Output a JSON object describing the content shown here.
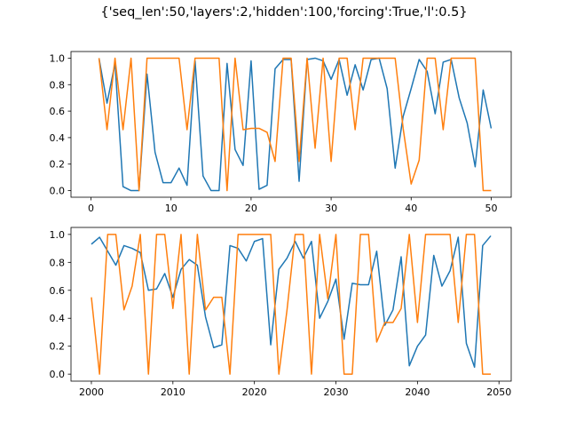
{
  "figure": {
    "suptitle": "{'seq_len':50,'layers':2,'hidden':100,'forcing':True,'l':0.5}"
  },
  "colors": {
    "series1": "#1f77b4",
    "series2": "#ff7f0e"
  },
  "chart_data": [
    {
      "type": "line",
      "title": "",
      "xlabel": "",
      "ylabel": "",
      "xlim": [
        -2.5,
        52.5
      ],
      "ylim": [
        -0.05,
        1.05
      ],
      "xticks": [
        0,
        10,
        20,
        30,
        40,
        50
      ],
      "yticks": [
        0.0,
        0.2,
        0.4,
        0.6,
        0.8,
        1.0
      ],
      "grid": false,
      "x": [
        1,
        2,
        3,
        4,
        5,
        6,
        7,
        8,
        9,
        10,
        11,
        12,
        13,
        14,
        15,
        16,
        17,
        18,
        19,
        20,
        21,
        22,
        23,
        24,
        25,
        26,
        27,
        28,
        29,
        30,
        31,
        32,
        33,
        34,
        35,
        36,
        37,
        38,
        39,
        40,
        41,
        42,
        43,
        44,
        45,
        46,
        47,
        48,
        49,
        50
      ],
      "series": [
        {
          "values": [
            1.0,
            0.66,
            0.96,
            0.03,
            0.0,
            0.0,
            0.88,
            0.29,
            0.06,
            0.06,
            0.17,
            0.04,
            0.98,
            0.11,
            0.0,
            0.0,
            0.96,
            0.31,
            0.19,
            0.98,
            0.01,
            0.04,
            0.92,
            0.99,
            0.99,
            0.07,
            0.99,
            1.0,
            0.98,
            0.84,
            0.99,
            0.72,
            0.95,
            0.76,
            0.99,
            1.0,
            0.77,
            0.17,
            0.56,
            0.77,
            0.99,
            0.9,
            0.58,
            0.97,
            0.99,
            0.7,
            0.51,
            0.18,
            0.76,
            0.47
          ]
        },
        {
          "values": [
            1.0,
            0.46,
            1.0,
            0.46,
            1.0,
            0.0,
            1.0,
            1.0,
            1.0,
            1.0,
            1.0,
            0.46,
            1.0,
            1.0,
            1.0,
            1.0,
            0.0,
            1.0,
            0.46,
            0.47,
            0.47,
            0.44,
            0.22,
            1.0,
            1.0,
            0.22,
            1.0,
            0.32,
            1.0,
            0.22,
            1.0,
            1.0,
            0.46,
            1.0,
            1.0,
            1.0,
            1.0,
            1.0,
            0.47,
            0.05,
            0.23,
            1.0,
            1.0,
            0.46,
            1.0,
            1.0,
            1.0,
            1.0,
            0.0,
            0.0
          ]
        }
      ]
    },
    {
      "type": "line",
      "title": "",
      "xlabel": "",
      "ylabel": "",
      "xlim": [
        1997.5,
        2051.5
      ],
      "ylim": [
        -0.05,
        1.05
      ],
      "xticks": [
        2000,
        2010,
        2020,
        2030,
        2040,
        2050
      ],
      "yticks": [
        0.0,
        0.2,
        0.4,
        0.6,
        0.8,
        1.0
      ],
      "grid": false,
      "x": [
        2000,
        2001,
        2002,
        2003,
        2004,
        2005,
        2006,
        2007,
        2008,
        2009,
        2010,
        2011,
        2012,
        2013,
        2014,
        2015,
        2016,
        2017,
        2018,
        2019,
        2020,
        2021,
        2022,
        2023,
        2024,
        2025,
        2026,
        2027,
        2028,
        2029,
        2030,
        2031,
        2032,
        2033,
        2034,
        2035,
        2036,
        2037,
        2038,
        2039,
        2040,
        2041,
        2042,
        2043,
        2044,
        2045,
        2046,
        2047,
        2048,
        2049
      ],
      "series": [
        {
          "values": [
            0.93,
            0.98,
            0.88,
            0.78,
            0.92,
            0.9,
            0.87,
            0.6,
            0.61,
            0.72,
            0.55,
            0.75,
            0.82,
            0.78,
            0.41,
            0.19,
            0.21,
            0.92,
            0.9,
            0.81,
            0.95,
            0.97,
            0.21,
            0.75,
            0.83,
            0.95,
            0.83,
            0.95,
            0.4,
            0.52,
            0.68,
            0.25,
            0.65,
            0.64,
            0.64,
            0.88,
            0.35,
            0.46,
            0.84,
            0.06,
            0.2,
            0.28,
            0.85,
            0.63,
            0.74,
            0.98,
            0.22,
            0.05,
            0.92,
            0.99
          ]
        },
        {
          "values": [
            0.55,
            0.0,
            1.0,
            1.0,
            0.46,
            0.63,
            1.0,
            0.0,
            1.0,
            1.0,
            0.47,
            1.0,
            0.0,
            1.0,
            0.46,
            0.55,
            0.55,
            0.0,
            1.0,
            1.0,
            1.0,
            1.0,
            1.0,
            0.0,
            0.46,
            1.0,
            1.0,
            0.0,
            1.0,
            0.54,
            1.0,
            0.0,
            0.0,
            1.0,
            1.0,
            0.23,
            0.37,
            0.37,
            0.47,
            1.0,
            0.37,
            1.0,
            1.0,
            1.0,
            1.0,
            0.37,
            1.0,
            1.0,
            0.0,
            0.0
          ]
        }
      ]
    }
  ]
}
